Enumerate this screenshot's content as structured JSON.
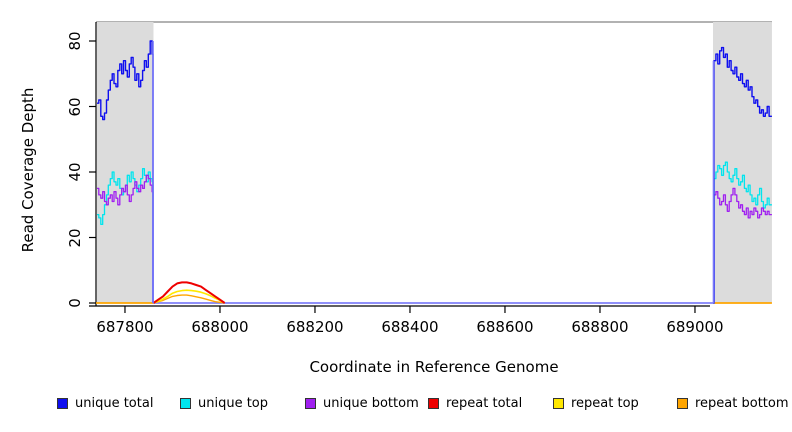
{
  "chart_data": {
    "type": "line",
    "title": "",
    "xlabel": "Coordinate in Reference Genome",
    "ylabel": "Read Coverage Depth",
    "xlim": [
      687739,
      689162
    ],
    "ylim": [
      0,
      86
    ],
    "grid": false,
    "shade_color": "#DCDCDC",
    "shaded_regions": [
      {
        "from": 687741,
        "to": 687860
      },
      {
        "from": 689038,
        "to": 689162
      }
    ],
    "x_ticks": [
      {
        "coord": 687800,
        "label": "687800"
      },
      {
        "coord": 688000,
        "label": "688000"
      },
      {
        "coord": 688200,
        "label": "688200"
      },
      {
        "coord": 688400,
        "label": "688400"
      },
      {
        "coord": 688600,
        "label": "688600"
      },
      {
        "coord": 688800,
        "label": "688800"
      },
      {
        "coord": 689000,
        "label": "689000"
      }
    ],
    "y_ticks": [
      {
        "value": 0,
        "label": "0"
      },
      {
        "value": 20,
        "label": "20"
      },
      {
        "value": 40,
        "label": "40"
      },
      {
        "value": 60,
        "label": "60"
      },
      {
        "value": 80,
        "label": "80"
      }
    ],
    "legend": {
      "position": "bottom",
      "entries": [
        {
          "label": "unique total",
          "color": "#0F0FEF"
        },
        {
          "label": "unique top",
          "color": "#00E5EE"
        },
        {
          "label": "unique bottom",
          "color": "#A020F0"
        },
        {
          "label": "repeat total",
          "color": "#EE0000"
        },
        {
          "label": "repeat top",
          "color": "#FFE800"
        },
        {
          "label": "repeat bottom",
          "color": "#FFA500"
        }
      ]
    },
    "series": [
      {
        "name": "zero-baseline-mid",
        "color": "#8080F8",
        "render": "line",
        "width": 1.7,
        "points": [
          [
            687859,
            0
          ],
          [
            689039,
            0
          ]
        ]
      },
      {
        "name": "zero-baseline-left-orange",
        "color": "#FFA500",
        "render": "line",
        "width": 1.8,
        "points": [
          [
            687739,
            0
          ],
          [
            687859,
            0
          ]
        ]
      },
      {
        "name": "zero-baseline-right-orange",
        "color": "#FFA500",
        "render": "line",
        "width": 1.8,
        "points": [
          [
            689039,
            0
          ],
          [
            689162,
            0
          ]
        ]
      },
      {
        "name": "repeat bottom",
        "color": "#FFA500",
        "render": "line",
        "width": 1.4,
        "start": 687860,
        "step": 10,
        "values": [
          0,
          0.4,
          0.8,
          1.4,
          2,
          2.3,
          2.4,
          2.4,
          2.2,
          1.9,
          1.6,
          1.2,
          0.8,
          0.4,
          0.2,
          0
        ]
      },
      {
        "name": "repeat top",
        "color": "#FFE800",
        "render": "line",
        "width": 1.6,
        "start": 687860,
        "step": 10,
        "values": [
          0,
          0.5,
          1.2,
          2,
          3,
          3.5,
          3.8,
          3.9,
          3.8,
          3.6,
          3.3,
          2.8,
          2.2,
          1.5,
          0.8,
          0
        ]
      },
      {
        "name": "repeat total",
        "color": "#EE0000",
        "render": "line",
        "width": 2,
        "start": 687860,
        "step": 10,
        "values": [
          0,
          1,
          2,
          3.5,
          5,
          6,
          6.3,
          6.3,
          6,
          5.5,
          5,
          4,
          3,
          2,
          1,
          0
        ]
      },
      {
        "name": "unique top",
        "color": "#00E5EE",
        "render": "step",
        "width": 1.3,
        "start": 687741,
        "step": 4,
        "values": [
          27,
          26,
          24,
          27,
          30,
          33,
          36,
          38,
          40,
          37,
          36,
          38,
          35,
          33,
          34,
          36,
          39,
          37,
          40,
          38,
          36,
          34,
          36,
          38,
          41,
          39,
          37,
          40,
          38,
          37
        ],
        "post": [
          [
            687859,
            0
          ]
        ]
      },
      {
        "name": "unique bottom",
        "color": "#A020F0",
        "render": "step",
        "width": 1.3,
        "start": 687741,
        "step": 4,
        "values": [
          35,
          33,
          32,
          34,
          31,
          30,
          32,
          33,
          31,
          34,
          32,
          30,
          33,
          35,
          34,
          36,
          33,
          31,
          33,
          35,
          37,
          35,
          34,
          36,
          35,
          37,
          39,
          38,
          36,
          34
        ],
        "post": [
          [
            687859,
            0
          ]
        ]
      },
      {
        "name": "unique total",
        "color": "#0F0FEF",
        "render": "step",
        "width": 1.4,
        "start": 687741,
        "step": 4,
        "values": [
          61,
          62,
          57,
          56,
          58,
          62,
          65,
          68,
          70,
          67,
          66,
          71,
          73,
          70,
          74,
          71,
          69,
          73,
          75,
          72,
          68,
          70,
          66,
          68,
          71,
          74,
          72,
          76,
          80,
          76
        ],
        "post": [
          [
            687859,
            0
          ]
        ]
      },
      {
        "name": "unique top right",
        "color": "#00E5EE",
        "render": "step",
        "width": 1.3,
        "start": 689040,
        "step": 4,
        "pre": [
          [
            689039,
            0
          ]
        ],
        "values": [
          38,
          40,
          42,
          41,
          39,
          42,
          43,
          40,
          38,
          37,
          39,
          41,
          38,
          36,
          37,
          39,
          35,
          34,
          36,
          33,
          31,
          32,
          30,
          33,
          35,
          31,
          29,
          30,
          32,
          30
        ],
        "post": [
          [
            689162,
            30
          ]
        ]
      },
      {
        "name": "unique bottom right",
        "color": "#A020F0",
        "render": "step",
        "width": 1.3,
        "start": 689040,
        "step": 4,
        "pre": [
          [
            689039,
            0
          ]
        ],
        "values": [
          33,
          34,
          32,
          30,
          31,
          33,
          30,
          28,
          31,
          33,
          35,
          33,
          31,
          29,
          30,
          28,
          27,
          29,
          26,
          28,
          27,
          29,
          28,
          26,
          27,
          29,
          28,
          27,
          28,
          27
        ],
        "post": [
          [
            689162,
            27
          ]
        ]
      },
      {
        "name": "unique total right",
        "color": "#0F0FEF",
        "render": "step",
        "width": 1.4,
        "start": 689040,
        "step": 4,
        "pre": [
          [
            689039,
            0
          ]
        ],
        "values": [
          74,
          76,
          73,
          77,
          78,
          75,
          76,
          72,
          74,
          71,
          70,
          72,
          69,
          68,
          70,
          67,
          66,
          68,
          65,
          66,
          63,
          61,
          62,
          60,
          58,
          59,
          57,
          58,
          60,
          57
        ],
        "post": [
          [
            689162,
            57
          ]
        ]
      },
      {
        "name": "boundary-left",
        "color": "#7878F8",
        "render": "line",
        "width": 1.6,
        "points": [
          [
            687859,
            0
          ],
          [
            687859,
            80
          ]
        ]
      },
      {
        "name": "boundary-right",
        "color": "#7878F8",
        "render": "line",
        "width": 1.6,
        "points": [
          [
            689039,
            0
          ],
          [
            689039,
            74
          ]
        ]
      }
    ]
  }
}
